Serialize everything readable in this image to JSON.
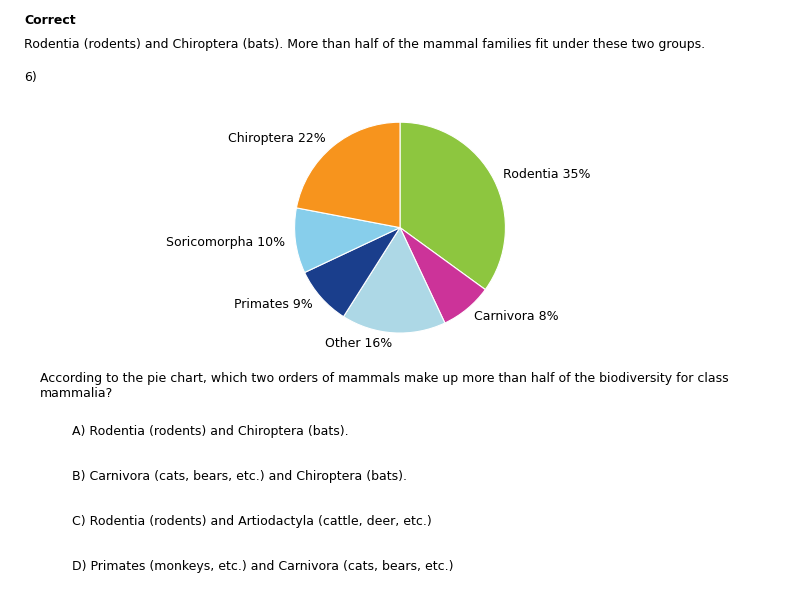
{
  "chart_data": {
    "type": "pie",
    "categories": [
      "Rodentia 35%",
      "Carnivora 8%",
      "Other 16%",
      "Primates 9%",
      "Soricomorpha 10%",
      "Chiroptera 22%"
    ],
    "values": [
      35,
      8,
      16,
      9,
      10,
      22
    ],
    "colors": [
      "#8dc63f",
      "#cc3399",
      "#add8e6",
      "#1a3e8c",
      "#87ceeb",
      "#f7941d"
    ],
    "annotations": [
      "Correct",
      "Rodentia (rodents) and Chiroptera (bats). More than half of the mammal families fit under these two groups.",
      "6)",
      "According to the pie chart, which two orders of mammals make up more than half of the biodiversity for class mammalia?",
      "A) Rodentia (rodents) and Chiroptera (bats).",
      "B) Carnivora (cats, bears, etc.) and Chiroptera (bats).",
      "C) Rodentia (rodents) and Artiodactyla (cattle, deer, etc.)",
      "D) Primates (monkeys, etc.) and Carnivora (cats, bears, etc.)"
    ]
  }
}
